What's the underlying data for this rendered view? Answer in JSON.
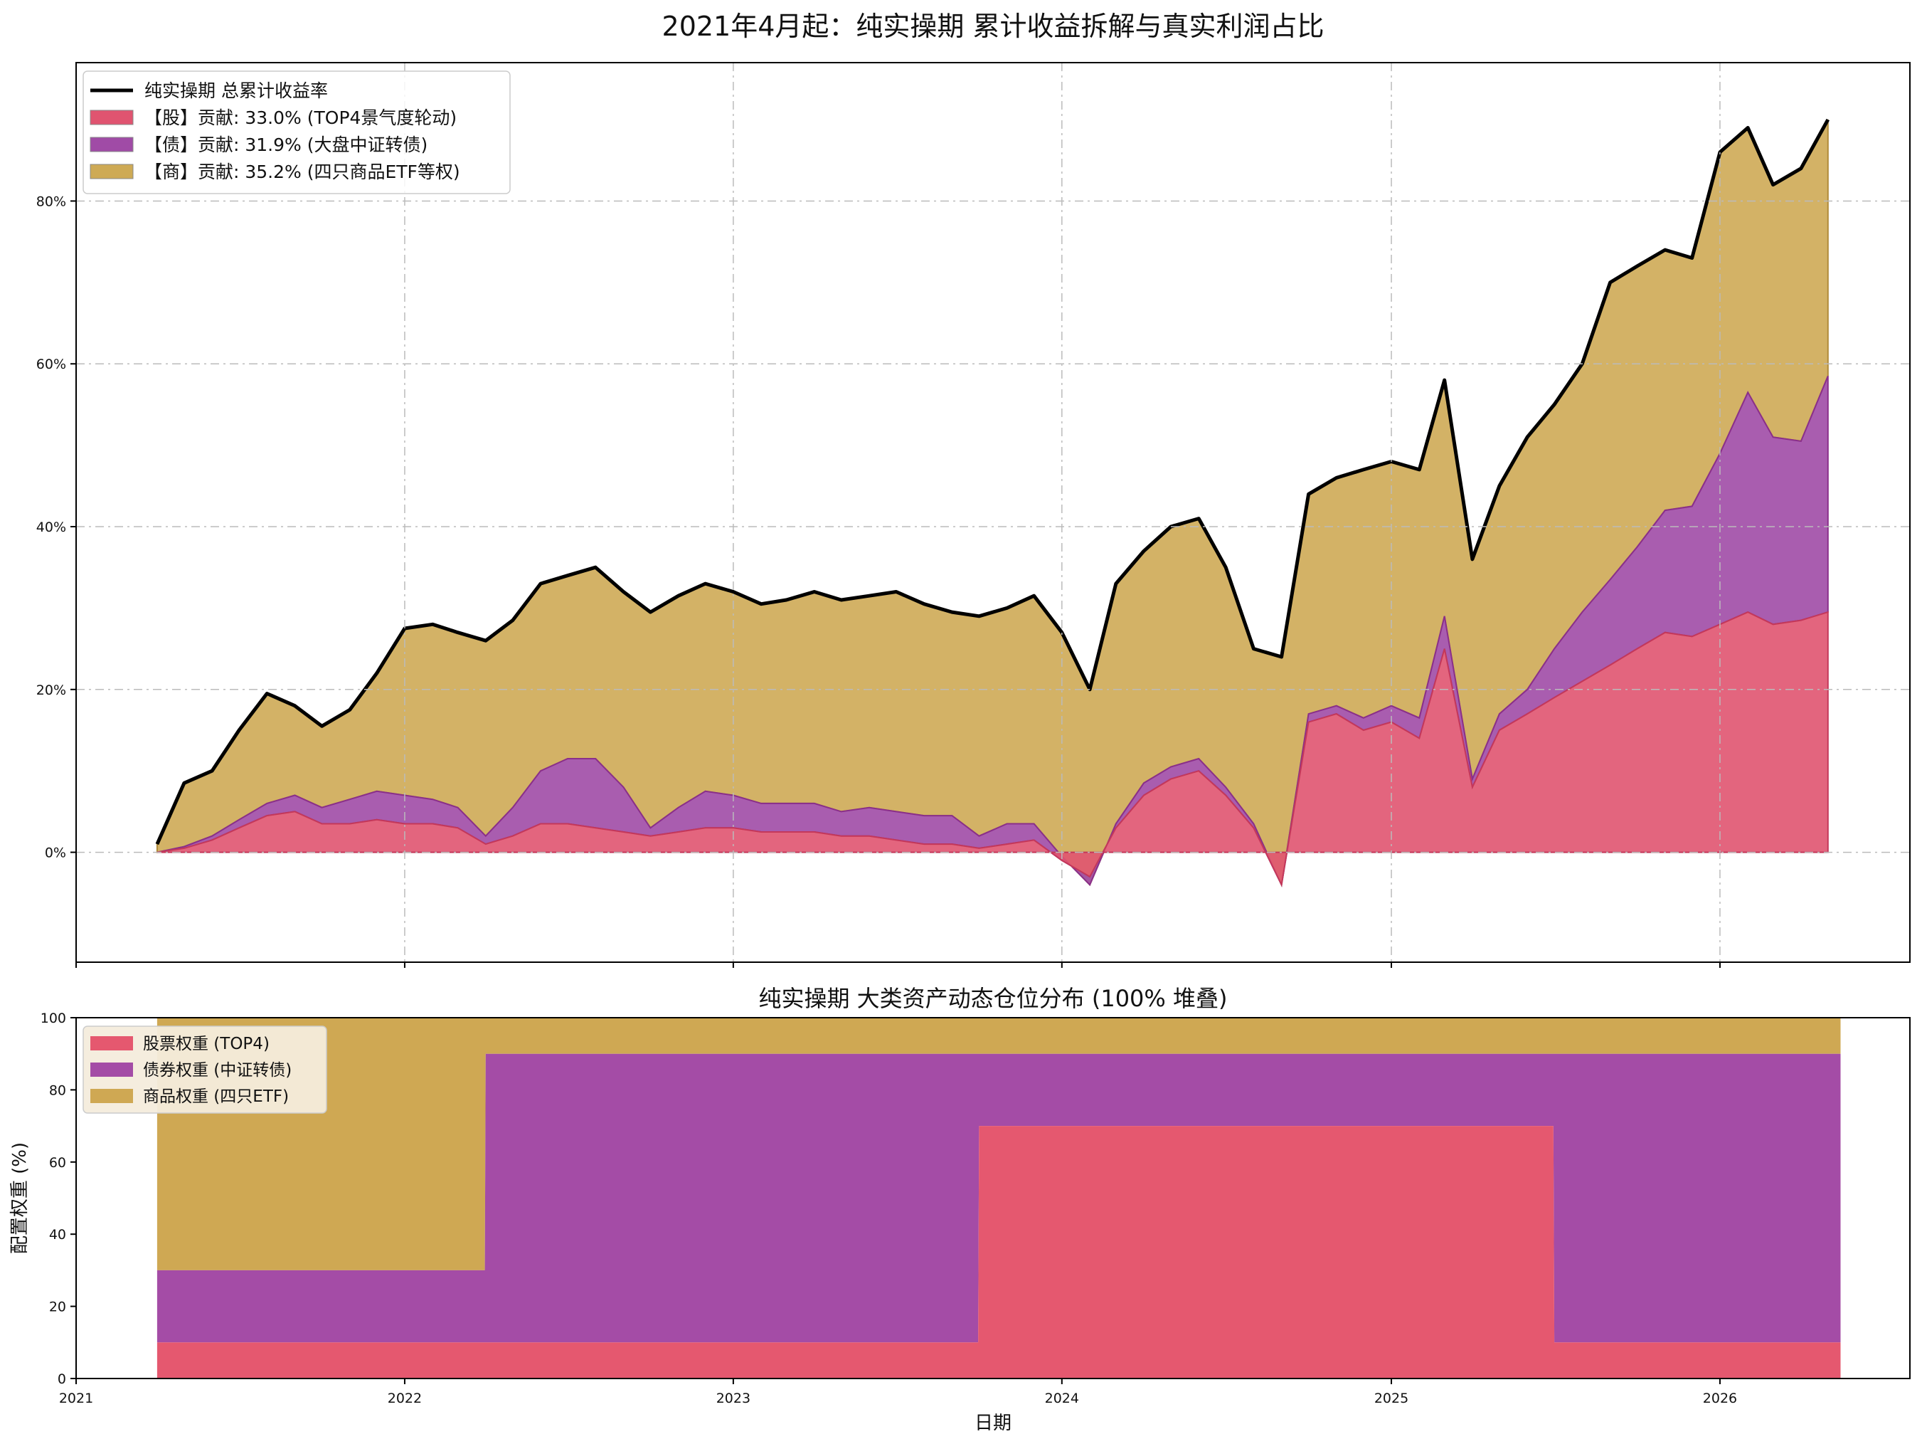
{
  "chart_data": [
    {
      "type": "area",
      "title": "2021年4月起：纯实操期 累计收益拆解与真实利润占比",
      "stacked": true,
      "ylim": [
        -13.5,
        97
      ],
      "yticks": [
        0,
        20,
        40,
        60,
        80
      ],
      "ytick_labels": [
        "0%",
        "20%",
        "40%",
        "60%",
        "80%"
      ],
      "grid": true,
      "legend_position": "top-left",
      "total_line": {
        "name": "纯实操期 总累计收益率",
        "color": "#000000",
        "x": [
          "2021-04-01",
          "2021-05-01",
          "2021-06-01",
          "2021-07-01",
          "2021-08-01",
          "2021-09-01",
          "2021-10-01",
          "2021-11-01",
          "2021-12-01",
          "2022-01-01",
          "2022-02-01",
          "2022-03-01",
          "2022-04-01",
          "2022-05-01",
          "2022-06-01",
          "2022-07-01",
          "2022-08-01",
          "2022-09-01",
          "2022-10-01",
          "2022-11-01",
          "2022-12-01",
          "2023-01-01",
          "2023-02-01",
          "2023-03-01",
          "2023-04-01",
          "2023-05-01",
          "2023-06-01",
          "2023-07-01",
          "2023-08-01",
          "2023-09-01",
          "2023-10-01",
          "2023-11-01",
          "2023-12-01",
          "2024-01-01",
          "2024-02-01",
          "2024-03-01",
          "2024-04-01",
          "2024-05-01",
          "2024-06-01",
          "2024-07-01",
          "2024-08-01",
          "2024-09-01",
          "2024-10-01",
          "2024-11-01",
          "2024-12-01",
          "2025-01-01",
          "2025-02-01",
          "2025-03-01",
          "2025-04-01",
          "2025-05-01",
          "2025-06-01",
          "2025-07-01",
          "2025-08-01",
          "2025-09-01",
          "2025-10-01",
          "2025-11-01",
          "2025-12-01",
          "2026-01-01",
          "2026-02-01",
          "2026-03-01",
          "2026-04-01",
          "2026-05-01"
        ],
        "values": [
          1.0,
          8.5,
          10.0,
          15.0,
          19.5,
          18.0,
          15.5,
          17.5,
          22.0,
          27.5,
          28.0,
          27.0,
          26.0,
          28.5,
          33.0,
          34.0,
          35.0,
          32.0,
          29.5,
          31.5,
          33.0,
          32.0,
          30.5,
          31.0,
          32.0,
          31.0,
          31.5,
          32.0,
          30.5,
          29.5,
          29.0,
          30.0,
          31.5,
          27.0,
          20.0,
          33.0,
          37.0,
          40.0,
          41.0,
          35.0,
          25.0,
          24.0,
          44.0,
          46.0,
          47.0,
          48.0,
          47.0,
          58.0,
          36.0,
          45.0,
          51.0,
          55.0,
          60.0,
          70.0,
          72.0,
          74.0,
          73.0,
          86.0,
          89.0,
          82.0,
          84.0,
          90.0
        ]
      },
      "series": [
        {
          "name": "【股】贡献: 33.0% (TOP4景气度轮动)",
          "color": "#e05470",
          "values": [
            0.0,
            0.5,
            1.5,
            3.0,
            4.5,
            5.0,
            3.5,
            3.5,
            4.0,
            3.5,
            3.5,
            3.0,
            1.0,
            2.0,
            3.5,
            3.5,
            3.0,
            2.5,
            2.0,
            2.5,
            3.0,
            3.0,
            2.5,
            2.5,
            2.5,
            2.0,
            2.0,
            1.5,
            1.0,
            1.0,
            0.5,
            1.0,
            1.5,
            -1.0,
            -3.0,
            3.0,
            7.0,
            9.0,
            10.0,
            7.0,
            3.0,
            -4.0,
            16.0,
            17.0,
            15.0,
            16.0,
            14.0,
            25.0,
            8.0,
            15.0,
            17.0,
            19.0,
            21.0,
            23.0,
            25.0,
            27.0,
            26.5,
            28.0,
            29.5,
            28.0,
            28.5,
            29.5
          ]
        },
        {
          "name": "【债】贡献: 31.9% (大盘中证转债)",
          "color": "#a04ba6",
          "values": [
            0.0,
            0.2,
            0.5,
            1.0,
            1.5,
            2.0,
            2.0,
            3.0,
            3.5,
            3.5,
            3.0,
            2.5,
            1.0,
            3.5,
            6.5,
            8.0,
            8.5,
            5.5,
            1.0,
            3.0,
            4.5,
            4.0,
            3.5,
            3.5,
            3.5,
            3.0,
            3.5,
            3.5,
            3.5,
            3.5,
            1.5,
            2.5,
            2.0,
            0.5,
            -1.0,
            0.5,
            1.5,
            1.5,
            1.5,
            1.0,
            0.5,
            0.0,
            1.0,
            1.0,
            1.5,
            2.0,
            2.5,
            4.0,
            1.0,
            2.0,
            3.0,
            6.0,
            8.5,
            10.5,
            12.5,
            15.0,
            16.0,
            21.0,
            27.0,
            23.0,
            22.0,
            29.0
          ]
        },
        {
          "name": "【商】贡献: 35.2% (四只商品ETF等权)",
          "color": "#ceaa55",
          "values": [
            1.0,
            7.8,
            8.0,
            11.0,
            13.5,
            11.0,
            10.0,
            11.0,
            14.5,
            20.5,
            21.5,
            21.5,
            24.0,
            23.0,
            23.0,
            22.5,
            23.5,
            24.0,
            26.5,
            26.0,
            25.5,
            25.0,
            24.5,
            25.0,
            26.0,
            26.0,
            26.0,
            27.0,
            26.0,
            25.0,
            27.0,
            26.5,
            28.0,
            27.5,
            24.0,
            29.5,
            28.5,
            29.5,
            29.5,
            27.0,
            21.5,
            28.0,
            27.0,
            28.0,
            30.5,
            30.0,
            30.5,
            29.0,
            27.0,
            28.0,
            31.0,
            30.0,
            30.5,
            36.5,
            34.5,
            32.0,
            30.5,
            37.0,
            32.5,
            31.0,
            33.5,
            31.5
          ]
        }
      ]
    },
    {
      "type": "area",
      "title": "纯实操期 大类资产动态仓位分布 (100% 堆叠)",
      "stacked": true,
      "ylabel": "配置权重 (%)",
      "xlabel": "日期",
      "ylim": [
        0,
        100
      ],
      "yticks": [
        0,
        20,
        40,
        60,
        80,
        100
      ],
      "xlim": [
        "2021-01-01",
        "2026-07-31"
      ],
      "xticks": [
        "2021-01-01",
        "2022-01-01",
        "2023-01-01",
        "2024-01-01",
        "2025-01-01",
        "2026-01-01"
      ],
      "xtick_labels": [
        "2021",
        "2022",
        "2023",
        "2024",
        "2025",
        "2026"
      ],
      "legend_position": "top-left",
      "x": [
        "2021-04-01",
        "2022-03-31",
        "2022-04-01",
        "2023-09-30",
        "2023-10-01",
        "2025-06-30",
        "2025-07-01",
        "2026-05-15"
      ],
      "series": [
        {
          "name": "股票权重 (TOP4)",
          "color": "#e5586f",
          "values": [
            10,
            10,
            10,
            10,
            70,
            70,
            10,
            10
          ]
        },
        {
          "name": "债券权重 (中证转债)",
          "color": "#a44ca6",
          "values": [
            20,
            20,
            80,
            80,
            20,
            20,
            80,
            80
          ]
        },
        {
          "name": "商品权重 (四只ETF)",
          "color": "#cfa853",
          "values": [
            70,
            70,
            10,
            10,
            10,
            10,
            10,
            10
          ]
        }
      ]
    }
  ]
}
